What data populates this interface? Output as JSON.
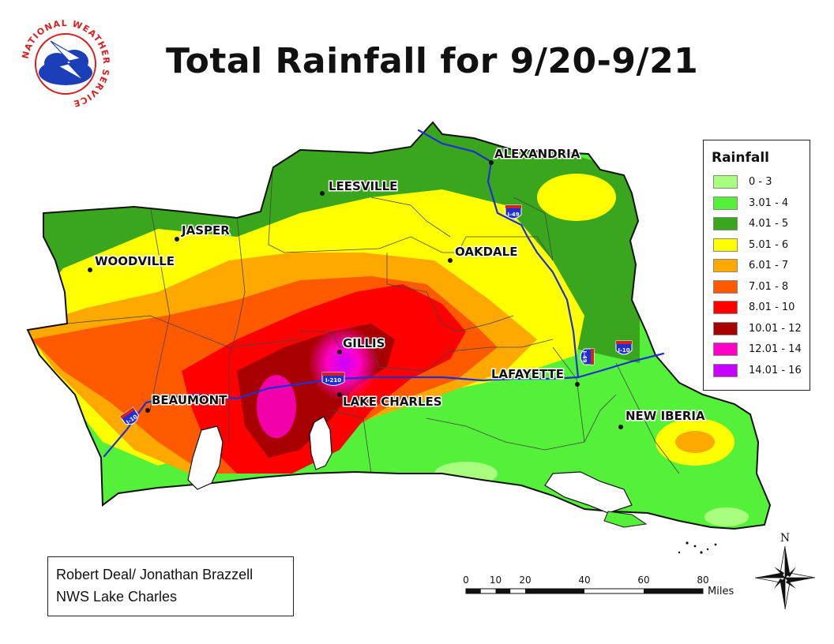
{
  "title": "Total Rainfall for 9/20-9/21",
  "logo": {
    "text": "NATIONAL WEATHER SERVICE",
    "icon": "nws-logo-icon"
  },
  "cities": [
    {
      "name": "ALEXANDRIA"
    },
    {
      "name": "LEESVILLE"
    },
    {
      "name": "JASPER"
    },
    {
      "name": "WOODVILLE"
    },
    {
      "name": "OAKDALE"
    },
    {
      "name": "GILLIS"
    },
    {
      "name": "BEAUMONT"
    },
    {
      "name": "LAKE CHARLES"
    },
    {
      "name": "LAFAYETTE"
    },
    {
      "name": "NEW IBERIA"
    }
  ],
  "highways": [
    "I-49",
    "I-210",
    "I-10",
    "I-10",
    "I-49",
    "I-10"
  ],
  "legend": {
    "title": "Rainfall",
    "items": [
      {
        "label": "0 - 3",
        "color": "#a8ff7e"
      },
      {
        "label": "3.01 - 4",
        "color": "#55f03a"
      },
      {
        "label": "4.01 - 5",
        "color": "#3aa61e"
      },
      {
        "label": "5.01 - 6",
        "color": "#ffff00"
      },
      {
        "label": "6.01 - 7",
        "color": "#ffa800"
      },
      {
        "label": "7.01 - 8",
        "color": "#ff5a00"
      },
      {
        "label": "8.01 - 10",
        "color": "#ff0000"
      },
      {
        "label": "10.01 - 12",
        "color": "#a80000"
      },
      {
        "label": "12.01 - 14",
        "color": "#ff00c8"
      },
      {
        "label": "14.01 - 16",
        "color": "#c800ff"
      }
    ]
  },
  "credits": {
    "line1": "Robert Deal/ Jonathan Brazzell",
    "line2": "NWS Lake Charles"
  },
  "scale": {
    "ticks": [
      "0",
      "10",
      "20",
      "40",
      "60",
      "80"
    ],
    "units": "Miles"
  },
  "compass": {
    "north": "N",
    "icon": "compass-rose-icon"
  }
}
